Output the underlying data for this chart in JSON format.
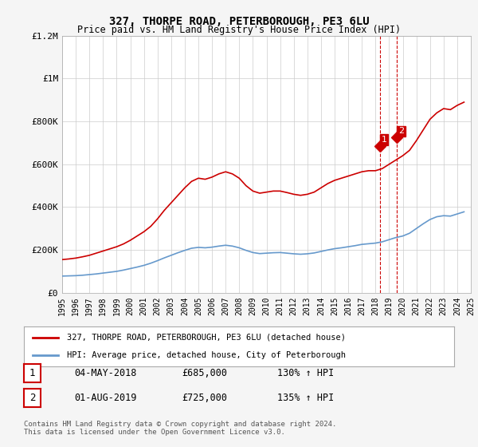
{
  "title": "327, THORPE ROAD, PETERBOROUGH, PE3 6LU",
  "subtitle": "Price paid vs. HM Land Registry's House Price Index (HPI)",
  "legend_line1": "327, THORPE ROAD, PETERBOROUGH, PE3 6LU (detached house)",
  "legend_line2": "HPI: Average price, detached house, City of Peterborough",
  "footer": "Contains HM Land Registry data © Crown copyright and database right 2024.\nThis data is licensed under the Open Government Licence v3.0.",
  "transactions": [
    {
      "num": "1",
      "date": "04-MAY-2018",
      "price": "£685,000",
      "hpi": "130% ↑ HPI"
    },
    {
      "num": "2",
      "date": "01-AUG-2019",
      "price": "£725,000",
      "hpi": "135% ↑ HPI"
    }
  ],
  "red_line_x": [
    1995.0,
    1995.5,
    1996.0,
    1996.5,
    1997.0,
    1997.5,
    1998.0,
    1998.5,
    1999.0,
    1999.5,
    2000.0,
    2000.5,
    2001.0,
    2001.5,
    2002.0,
    2002.5,
    2003.0,
    2003.5,
    2004.0,
    2004.5,
    2005.0,
    2005.5,
    2006.0,
    2006.5,
    2007.0,
    2007.5,
    2008.0,
    2008.5,
    2009.0,
    2009.5,
    2010.0,
    2010.5,
    2011.0,
    2011.5,
    2012.0,
    2012.5,
    2013.0,
    2013.5,
    2014.0,
    2014.5,
    2015.0,
    2015.5,
    2016.0,
    2016.5,
    2017.0,
    2017.5,
    2018.0,
    2018.5,
    2019.0,
    2019.5,
    2020.0,
    2020.5,
    2021.0,
    2021.5,
    2022.0,
    2022.5,
    2023.0,
    2023.5,
    2024.0,
    2024.5
  ],
  "red_line_y": [
    155000,
    158000,
    162000,
    168000,
    175000,
    185000,
    195000,
    205000,
    215000,
    228000,
    245000,
    265000,
    285000,
    310000,
    345000,
    385000,
    420000,
    455000,
    490000,
    520000,
    535000,
    530000,
    540000,
    555000,
    565000,
    555000,
    535000,
    500000,
    475000,
    465000,
    470000,
    475000,
    475000,
    468000,
    460000,
    455000,
    460000,
    470000,
    490000,
    510000,
    525000,
    535000,
    545000,
    555000,
    565000,
    570000,
    570000,
    580000,
    600000,
    620000,
    640000,
    665000,
    710000,
    760000,
    810000,
    840000,
    860000,
    855000,
    875000,
    890000
  ],
  "blue_line_x": [
    1995.0,
    1995.5,
    1996.0,
    1996.5,
    1997.0,
    1997.5,
    1998.0,
    1998.5,
    1999.0,
    1999.5,
    2000.0,
    2000.5,
    2001.0,
    2001.5,
    2002.0,
    2002.5,
    2003.0,
    2003.5,
    2004.0,
    2004.5,
    2005.0,
    2005.5,
    2006.0,
    2006.5,
    2007.0,
    2007.5,
    2008.0,
    2008.5,
    2009.0,
    2009.5,
    2010.0,
    2010.5,
    2011.0,
    2011.5,
    2012.0,
    2012.5,
    2013.0,
    2013.5,
    2014.0,
    2014.5,
    2015.0,
    2015.5,
    2016.0,
    2016.5,
    2017.0,
    2017.5,
    2018.0,
    2018.5,
    2019.0,
    2019.5,
    2020.0,
    2020.5,
    2021.0,
    2021.5,
    2022.0,
    2022.5,
    2023.0,
    2023.5,
    2024.0,
    2024.5
  ],
  "blue_line_y": [
    78000,
    79000,
    80000,
    82000,
    85000,
    88000,
    92000,
    96000,
    100000,
    106000,
    113000,
    120000,
    128000,
    138000,
    150000,
    163000,
    175000,
    187000,
    198000,
    208000,
    212000,
    210000,
    213000,
    218000,
    222000,
    218000,
    210000,
    198000,
    188000,
    183000,
    185000,
    187000,
    188000,
    185000,
    182000,
    180000,
    182000,
    186000,
    193000,
    200000,
    206000,
    210000,
    215000,
    220000,
    226000,
    229000,
    232000,
    238000,
    248000,
    258000,
    265000,
    278000,
    300000,
    322000,
    342000,
    355000,
    360000,
    358000,
    368000,
    378000
  ],
  "sale1_x": 2018.33,
  "sale1_y": 685000,
  "sale2_x": 2019.58,
  "sale2_y": 725000,
  "red_color": "#cc0000",
  "blue_color": "#6699cc",
  "marker_color": "#cc0000",
  "dashed_color": "#cc0000",
  "xlim": [
    1995,
    2025
  ],
  "ylim": [
    0,
    1200000
  ],
  "yticks": [
    0,
    200000,
    400000,
    600000,
    800000,
    1000000,
    1200000
  ],
  "ytick_labels": [
    "£0",
    "£200K",
    "£400K",
    "£600K",
    "£800K",
    "£1M",
    "£1.2M"
  ],
  "xticks": [
    1995,
    1996,
    1997,
    1998,
    1999,
    2000,
    2001,
    2002,
    2003,
    2004,
    2005,
    2006,
    2007,
    2008,
    2009,
    2010,
    2011,
    2012,
    2013,
    2014,
    2015,
    2016,
    2017,
    2018,
    2019,
    2020,
    2021,
    2022,
    2023,
    2024,
    2025
  ],
  "bg_color": "#f5f5f5",
  "plot_bg": "#ffffff",
  "grid_color": "#cccccc"
}
